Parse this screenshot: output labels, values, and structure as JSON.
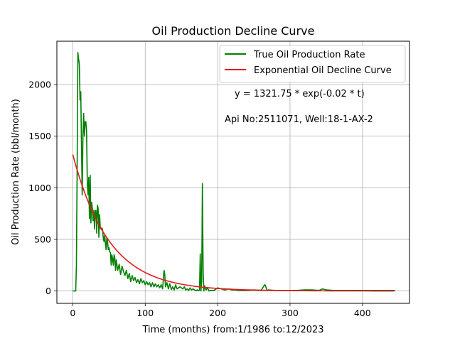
{
  "chart_data": {
    "type": "line",
    "title": "Oil Production Decline Curve",
    "xlabel": "Time (months) from:1/1986 to:12/2023",
    "ylabel": "Oil Production Rate (bbl/month)",
    "xlim": [
      -22,
      465
    ],
    "ylim": [
      -120,
      2420
    ],
    "xticks": [
      0,
      100,
      200,
      300,
      400
    ],
    "yticks": [
      0,
      500,
      1000,
      1500,
      2000
    ],
    "grid": true,
    "legend_position": "top-right",
    "annotations": [
      "y = 1321.75 * exp(-0.02 * t)",
      "Api No:2511071, Well:18-1-AX-2"
    ],
    "series": [
      {
        "name": "True Oil Production Rate",
        "color": "#008000",
        "x": [
          0,
          2,
          4,
          5,
          6,
          7,
          8,
          9,
          10,
          11,
          12,
          13,
          14,
          15,
          16,
          17,
          18,
          19,
          20,
          21,
          22,
          23,
          24,
          25,
          26,
          27,
          28,
          29,
          30,
          31,
          32,
          33,
          34,
          35,
          36,
          37,
          38,
          39,
          40,
          41,
          42,
          43,
          44,
          45,
          46,
          47,
          48,
          49,
          50,
          51,
          52,
          53,
          54,
          55,
          56,
          57,
          58,
          59,
          60,
          62,
          64,
          66,
          68,
          70,
          72,
          74,
          76,
          78,
          80,
          82,
          84,
          86,
          88,
          90,
          92,
          94,
          96,
          98,
          100,
          102,
          104,
          106,
          108,
          110,
          112,
          114,
          116,
          118,
          120,
          122,
          124,
          126,
          127,
          128,
          130,
          132,
          134,
          136,
          138,
          140,
          142,
          144,
          146,
          148,
          150,
          152,
          154,
          156,
          158,
          160,
          162,
          164,
          166,
          168,
          170,
          172,
          174,
          175,
          176,
          177,
          178,
          179,
          180,
          181,
          182,
          184,
          186,
          188,
          190,
          195,
          200,
          205,
          210,
          215,
          220,
          225,
          230,
          240,
          250,
          260,
          265,
          266,
          268,
          270,
          280,
          290,
          300,
          310,
          320,
          330,
          340,
          345,
          350,
          360,
          370,
          380,
          390,
          400,
          410,
          420,
          430,
          440,
          445
        ],
        "y": [
          0,
          0,
          0,
          250,
          1200,
          2310,
          2250,
          2200,
          1850,
          1930,
          1400,
          930,
          1500,
          1720,
          1500,
          1640,
          1640,
          1550,
          1050,
          930,
          1100,
          700,
          1120,
          660,
          860,
          800,
          680,
          780,
          600,
          780,
          780,
          560,
          830,
          800,
          520,
          740,
          610,
          600,
          610,
          600,
          520,
          480,
          540,
          460,
          400,
          520,
          480,
          400,
          420,
          380,
          370,
          250,
          350,
          310,
          250,
          350,
          320,
          200,
          300,
          200,
          260,
          160,
          240,
          190,
          150,
          200,
          120,
          170,
          90,
          150,
          100,
          130,
          80,
          110,
          70,
          120,
          80,
          100,
          60,
          90,
          60,
          80,
          40,
          80,
          40,
          70,
          40,
          60,
          30,
          60,
          20,
          200,
          160,
          40,
          80,
          20,
          70,
          15,
          40,
          10,
          60,
          20,
          30,
          40,
          30,
          20,
          40,
          10,
          20,
          5,
          30,
          10,
          20,
          10,
          5,
          10,
          5,
          10,
          360,
          0,
          100,
          1040,
          200,
          0,
          50,
          10,
          30,
          0,
          5,
          5,
          30,
          20,
          10,
          20,
          10,
          10,
          5,
          5,
          10,
          5,
          60,
          55,
          5,
          10,
          5,
          5,
          5,
          5,
          10,
          10,
          5,
          20,
          10,
          5,
          5,
          5,
          5,
          5,
          5,
          5,
          5,
          5,
          5
        ]
      },
      {
        "name": "Exponential Oil Decline Curve",
        "color": "#e41a1c",
        "model": {
          "a": 1321.75,
          "b": -0.02
        },
        "x_range": [
          0,
          445
        ]
      }
    ]
  }
}
